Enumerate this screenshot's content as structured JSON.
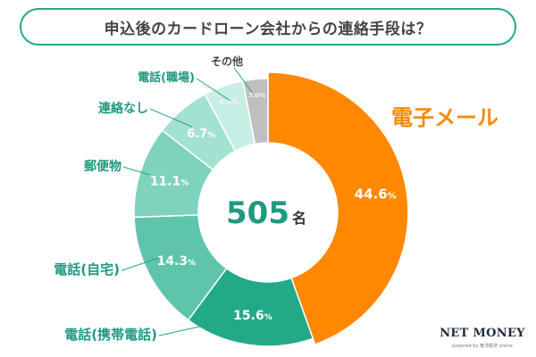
{
  "title": "申込後のカードローン会社からの連絡手段は？",
  "brand": {
    "name": "NET MONEY",
    "tagline": "powered by 東洋経済 online"
  },
  "center": {
    "number": "505",
    "unit": "名"
  },
  "colors": {
    "title_border": "#23a98a",
    "label_text": "#1e9a7e",
    "highlight_label": "#f5890a",
    "leader_line": "#26a487",
    "value_text": "#ffffff",
    "highlight_value_text": "#ffffff",
    "small_value_text": "#f4f4f4",
    "center_number": "#1e9a7e",
    "center_unit": "#333333"
  },
  "chart_data": {
    "type": "pie",
    "donut": true,
    "total_respondents": 505,
    "unit": "%",
    "series": [
      {
        "name": "電子メール",
        "value": 44.6,
        "label": "44.6",
        "color": "#ff8800"
      },
      {
        "name": "電話(携帯電話)",
        "value": 15.6,
        "label": "15.6",
        "color": "#22aa88"
      },
      {
        "name": "電話(自宅)",
        "value": 14.3,
        "label": "14.3",
        "color": "#5ec5ab"
      },
      {
        "name": "郵便物",
        "value": 11.1,
        "label": "11.1",
        "color": "#7fd3bd"
      },
      {
        "name": "連絡なし",
        "value": 6.7,
        "label": "6.7",
        "color": "#a3e1d1"
      },
      {
        "name": "電話(職場)",
        "value": 4.8,
        "label": "4.8",
        "color": "#c8efe5"
      },
      {
        "name": "その他",
        "value": 3.0,
        "label": "3.0",
        "color": "#bfbfbf"
      }
    ]
  }
}
